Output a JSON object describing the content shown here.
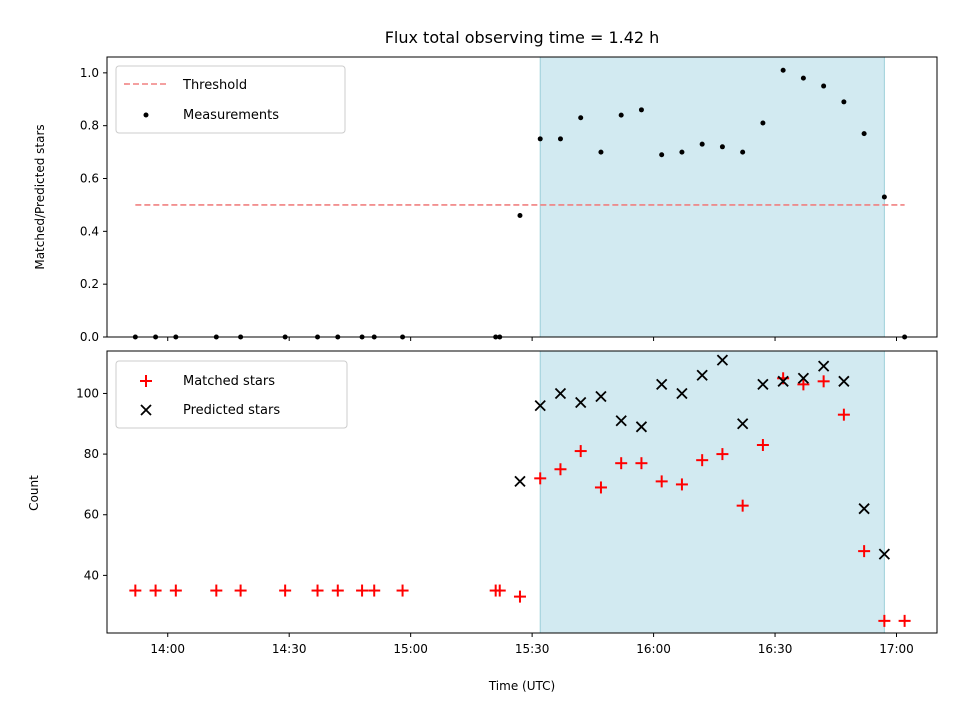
{
  "chart_data": {
    "type": "scatter",
    "title": "Flux total observing time = 1.42 h",
    "xlabel": "Time (UTC)",
    "x_ticks": [
      "14:00",
      "14:30",
      "15:00",
      "15:30",
      "16:00",
      "16:30",
      "17:00"
    ],
    "xlim": [
      "13:45",
      "17:10"
    ],
    "shaded_interval": {
      "start": "15:32",
      "end": "16:57",
      "color": "#add8e6"
    },
    "top_panel": {
      "ylabel": "Matched/Predicted stars",
      "ylim": [
        0,
        1.06
      ],
      "y_ticks": [
        "0.0",
        "0.2",
        "0.4",
        "0.6",
        "0.8",
        "1.0"
      ],
      "legend_position": "upper-left",
      "threshold": {
        "name": "Threshold",
        "value": 0.5,
        "x_start": "13:52",
        "x_end": "17:02",
        "color": "#f08080"
      },
      "measurements": {
        "name": "Measurements",
        "color": "#000000",
        "points": [
          {
            "x": "13:52",
            "y": 0
          },
          {
            "x": "13:57",
            "y": 0
          },
          {
            "x": "14:02",
            "y": 0
          },
          {
            "x": "14:12",
            "y": 0
          },
          {
            "x": "14:18",
            "y": 0
          },
          {
            "x": "14:29",
            "y": 0
          },
          {
            "x": "14:37",
            "y": 0
          },
          {
            "x": "14:42",
            "y": 0
          },
          {
            "x": "14:48",
            "y": 0
          },
          {
            "x": "14:51",
            "y": 0
          },
          {
            "x": "14:58",
            "y": 0
          },
          {
            "x": "15:21",
            "y": 0
          },
          {
            "x": "15:22",
            "y": 0
          },
          {
            "x": "15:27",
            "y": 0.46
          },
          {
            "x": "15:32",
            "y": 0.75
          },
          {
            "x": "15:37",
            "y": 0.75
          },
          {
            "x": "15:42",
            "y": 0.83
          },
          {
            "x": "15:47",
            "y": 0.7
          },
          {
            "x": "15:52",
            "y": 0.84
          },
          {
            "x": "15:57",
            "y": 0.86
          },
          {
            "x": "16:02",
            "y": 0.69
          },
          {
            "x": "16:07",
            "y": 0.7
          },
          {
            "x": "16:12",
            "y": 0.73
          },
          {
            "x": "16:17",
            "y": 0.72
          },
          {
            "x": "16:22",
            "y": 0.7
          },
          {
            "x": "16:27",
            "y": 0.81
          },
          {
            "x": "16:32",
            "y": 1.01
          },
          {
            "x": "16:37",
            "y": 0.98
          },
          {
            "x": "16:42",
            "y": 0.95
          },
          {
            "x": "16:47",
            "y": 0.89
          },
          {
            "x": "16:52",
            "y": 0.77
          },
          {
            "x": "16:57",
            "y": 0.53
          },
          {
            "x": "17:02",
            "y": 0
          }
        ]
      }
    },
    "bottom_panel": {
      "ylabel": "Count",
      "ylim": [
        21,
        114
      ],
      "y_ticks": [
        "40",
        "60",
        "80",
        "100"
      ],
      "legend_position": "upper-left",
      "matched": {
        "name": "Matched stars",
        "color": "#ff0000",
        "points": [
          {
            "x": "13:52",
            "y": 35
          },
          {
            "x": "13:57",
            "y": 35
          },
          {
            "x": "14:02",
            "y": 35
          },
          {
            "x": "14:12",
            "y": 35
          },
          {
            "x": "14:18",
            "y": 35
          },
          {
            "x": "14:29",
            "y": 35
          },
          {
            "x": "14:37",
            "y": 35
          },
          {
            "x": "14:42",
            "y": 35
          },
          {
            "x": "14:48",
            "y": 35
          },
          {
            "x": "14:51",
            "y": 35
          },
          {
            "x": "14:58",
            "y": 35
          },
          {
            "x": "15:21",
            "y": 35
          },
          {
            "x": "15:22",
            "y": 35
          },
          {
            "x": "15:27",
            "y": 33
          },
          {
            "x": "15:32",
            "y": 72
          },
          {
            "x": "15:37",
            "y": 75
          },
          {
            "x": "15:42",
            "y": 81
          },
          {
            "x": "15:47",
            "y": 69
          },
          {
            "x": "15:52",
            "y": 77
          },
          {
            "x": "15:57",
            "y": 77
          },
          {
            "x": "16:02",
            "y": 71
          },
          {
            "x": "16:07",
            "y": 70
          },
          {
            "x": "16:12",
            "y": 78
          },
          {
            "x": "16:17",
            "y": 80
          },
          {
            "x": "16:22",
            "y": 63
          },
          {
            "x": "16:27",
            "y": 83
          },
          {
            "x": "16:32",
            "y": 105
          },
          {
            "x": "16:37",
            "y": 103
          },
          {
            "x": "16:42",
            "y": 104
          },
          {
            "x": "16:47",
            "y": 93
          },
          {
            "x": "16:52",
            "y": 48
          },
          {
            "x": "16:57",
            "y": 25
          },
          {
            "x": "17:02",
            "y": 25
          }
        ]
      },
      "predicted": {
        "name": "Predicted stars",
        "color": "#000000",
        "points": [
          {
            "x": "15:27",
            "y": 71
          },
          {
            "x": "15:32",
            "y": 96
          },
          {
            "x": "15:37",
            "y": 100
          },
          {
            "x": "15:42",
            "y": 97
          },
          {
            "x": "15:47",
            "y": 99
          },
          {
            "x": "15:52",
            "y": 91
          },
          {
            "x": "15:57",
            "y": 89
          },
          {
            "x": "16:02",
            "y": 103
          },
          {
            "x": "16:07",
            "y": 100
          },
          {
            "x": "16:12",
            "y": 106
          },
          {
            "x": "16:17",
            "y": 111
          },
          {
            "x": "16:22",
            "y": 90
          },
          {
            "x": "16:27",
            "y": 103
          },
          {
            "x": "16:32",
            "y": 104
          },
          {
            "x": "16:37",
            "y": 105
          },
          {
            "x": "16:42",
            "y": 109
          },
          {
            "x": "16:47",
            "y": 104
          },
          {
            "x": "16:52",
            "y": 62
          },
          {
            "x": "16:57",
            "y": 47
          }
        ]
      }
    }
  }
}
